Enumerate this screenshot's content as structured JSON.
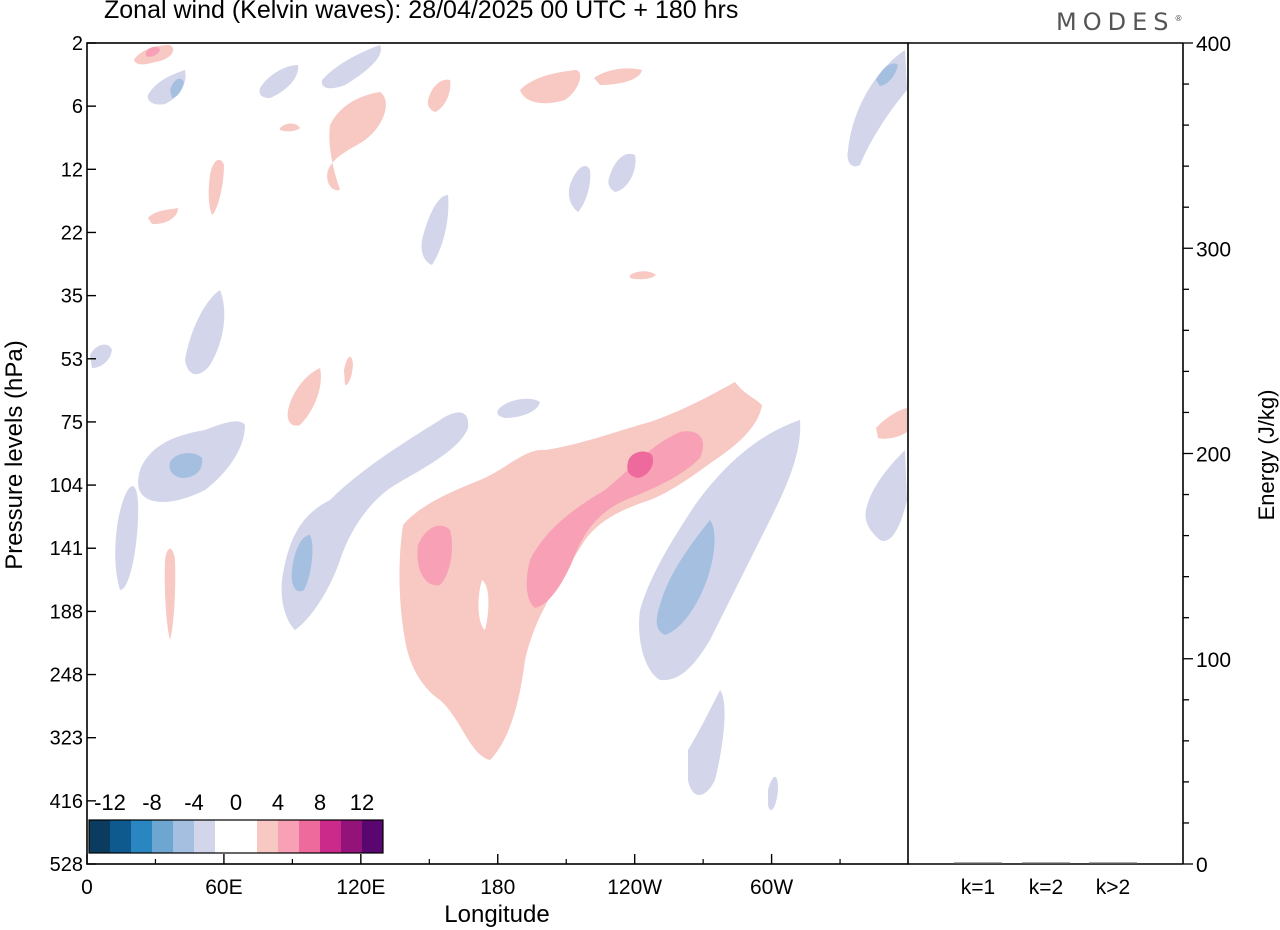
{
  "header": {
    "title": "Zonal wind (Kelvin waves):  28/04/2025  00 UTC  + 180 hrs",
    "brand": "MODES",
    "brand_mark": "®"
  },
  "chart_data": [
    {
      "type": "heatmap",
      "title": "Zonal wind (Kelvin waves):  28/04/2025  00 UTC  + 180 hrs",
      "xlabel": "Longitude",
      "ylabel": "Pressure levels (hPa)",
      "x_ticks": [
        "0",
        "60E",
        "120E",
        "180",
        "120W",
        "60W"
      ],
      "x_tick_degrees": [
        0,
        60,
        120,
        180,
        240,
        300
      ],
      "xlim": [
        0,
        360
      ],
      "y_ticks": [
        2,
        6,
        12,
        22,
        35,
        53,
        75,
        104,
        141,
        188,
        248,
        323,
        416,
        528
      ],
      "y_scale": "pressure levels, top to bottom",
      "grid": false,
      "colorbar": {
        "labels": [
          "-12",
          "-8",
          "-4",
          "0",
          "4",
          "8",
          "12"
        ],
        "colors": [
          "#0b3b5e",
          "#0e5a8f",
          "#2a86c0",
          "#6ea6d2",
          "#a5bfe0",
          "#d3d5ea",
          "#ffffff",
          "#ffffff",
          "#f8c8c3",
          "#f8a0b5",
          "#ee6a9d",
          "#cc2a8a",
          "#94137b",
          "#5a0670"
        ],
        "placement": "bottom-left"
      },
      "features": [
        {
          "sign": "positive",
          "max_value": 8,
          "centre_lon": 235,
          "centre_level": 104,
          "description_level_range": [
            75,
            323
          ]
        },
        {
          "sign": "negative",
          "max_value": -6,
          "centre_lon": 260,
          "centre_level": 160,
          "description_level_range": [
            104,
            270
          ]
        },
        {
          "sign": "negative",
          "max_value": -6,
          "centre_lon": 90,
          "centre_level": 160,
          "description_level_range": [
            75,
            210
          ]
        },
        {
          "sign": "negative",
          "max_value": -6,
          "centre_lon": 38,
          "centre_level": 100,
          "description_level_range": [
            75,
            141
          ]
        }
      ]
    },
    {
      "type": "bar",
      "ylabel": "Energy (J/kg)",
      "categories": [
        "k=1",
        "k=2",
        "k>2"
      ],
      "values": [
        0,
        0,
        0
      ],
      "ylim": [
        0,
        400
      ],
      "y_ticks": [
        0,
        100,
        200,
        300,
        400
      ]
    }
  ]
}
